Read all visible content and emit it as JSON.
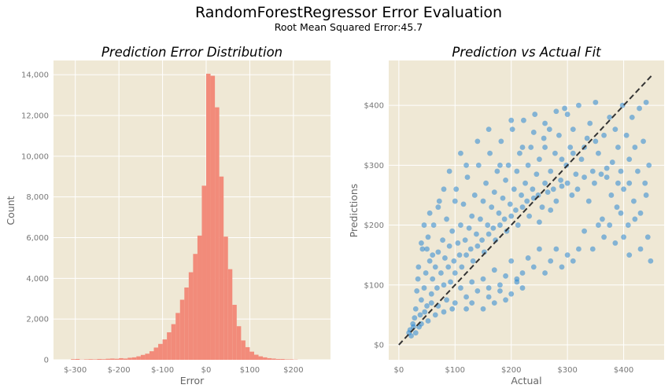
{
  "figure": {
    "title": "RandomForestRegressor Error Evaluation",
    "subtitle": "Root Mean Squared Error:45.7",
    "colors": {
      "background": "#EFE8D5",
      "grid": "#FFFFFF",
      "hist": "#F28B7A",
      "scatter": "#2A86D3",
      "ideal_line": "#333333"
    }
  },
  "chart_data": [
    {
      "type": "bar",
      "title": "Prediction Error Distribution",
      "xlabel": "Error",
      "ylabel": "Count",
      "xlim": [
        -350,
        285
      ],
      "ylim": [
        0,
        14700
      ],
      "xticks": [
        -300,
        -200,
        -100,
        0,
        100,
        200
      ],
      "xtick_labels": [
        "$-300",
        "$-200",
        "$-100",
        "$0",
        "$100",
        "$200"
      ],
      "yticks": [
        0,
        2000,
        4000,
        6000,
        8000,
        10000,
        12000,
        14000
      ],
      "ytick_labels": [
        "0",
        "2,000",
        "4,000",
        "6,000",
        "8,000",
        "10,000",
        "12,000",
        "14,000"
      ],
      "bin_width": 10,
      "bins": [
        {
          "x0": -310,
          "count": 30
        },
        {
          "x0": -300,
          "count": 40
        },
        {
          "x0": -290,
          "count": 10
        },
        {
          "x0": -280,
          "count": 20
        },
        {
          "x0": -270,
          "count": 30
        },
        {
          "x0": -260,
          "count": 20
        },
        {
          "x0": -250,
          "count": 40
        },
        {
          "x0": -240,
          "count": 30
        },
        {
          "x0": -230,
          "count": 50
        },
        {
          "x0": -220,
          "count": 60
        },
        {
          "x0": -210,
          "count": 50
        },
        {
          "x0": -200,
          "count": 80
        },
        {
          "x0": -190,
          "count": 60
        },
        {
          "x0": -180,
          "count": 100
        },
        {
          "x0": -170,
          "count": 120
        },
        {
          "x0": -160,
          "count": 170
        },
        {
          "x0": -150,
          "count": 240
        },
        {
          "x0": -140,
          "count": 300
        },
        {
          "x0": -130,
          "count": 420
        },
        {
          "x0": -120,
          "count": 600
        },
        {
          "x0": -110,
          "count": 780
        },
        {
          "x0": -100,
          "count": 1000
        },
        {
          "x0": -90,
          "count": 1350
        },
        {
          "x0": -80,
          "count": 1750
        },
        {
          "x0": -70,
          "count": 2300
        },
        {
          "x0": -60,
          "count": 2950
        },
        {
          "x0": -50,
          "count": 3550
        },
        {
          "x0": -40,
          "count": 4300
        },
        {
          "x0": -30,
          "count": 5200
        },
        {
          "x0": -20,
          "count": 6100
        },
        {
          "x0": -10,
          "count": 8550
        },
        {
          "x0": 0,
          "count": 14050
        },
        {
          "x0": 10,
          "count": 13950
        },
        {
          "x0": 20,
          "count": 12400
        },
        {
          "x0": 30,
          "count": 9000
        },
        {
          "x0": 40,
          "count": 6050
        },
        {
          "x0": 50,
          "count": 4450
        },
        {
          "x0": 60,
          "count": 2700
        },
        {
          "x0": 70,
          "count": 1650
        },
        {
          "x0": 80,
          "count": 950
        },
        {
          "x0": 90,
          "count": 620
        },
        {
          "x0": 100,
          "count": 400
        },
        {
          "x0": 110,
          "count": 250
        },
        {
          "x0": 120,
          "count": 170
        },
        {
          "x0": 130,
          "count": 120
        },
        {
          "x0": 140,
          "count": 80
        },
        {
          "x0": 150,
          "count": 60
        },
        {
          "x0": 160,
          "count": 40
        },
        {
          "x0": 170,
          "count": 40
        },
        {
          "x0": 180,
          "count": 20
        },
        {
          "x0": 190,
          "count": 20
        },
        {
          "x0": 200,
          "count": 10
        }
      ]
    },
    {
      "type": "scatter",
      "title": "Prediction vs Actual Fit",
      "xlabel": "Actual",
      "ylabel": "Predictions",
      "xlim": [
        -18,
        472
      ],
      "ylim": [
        -25,
        475
      ],
      "xticks": [
        0,
        100,
        200,
        300,
        400
      ],
      "xtick_labels": [
        "$0",
        "$100",
        "$200",
        "$300",
        "$400"
      ],
      "yticks": [
        0,
        100,
        200,
        300,
        400
      ],
      "ytick_labels": [
        "$0",
        "$100",
        "$200",
        "$300",
        "$400"
      ],
      "ideal_line": {
        "x": [
          0,
          450
        ],
        "y": [
          0,
          450
        ]
      },
      "points": [
        [
          20,
          25
        ],
        [
          25,
          35
        ],
        [
          28,
          45
        ],
        [
          30,
          60
        ],
        [
          32,
          90
        ],
        [
          34,
          110
        ],
        [
          35,
          130
        ],
        [
          38,
          50
        ],
        [
          40,
          75
        ],
        [
          42,
          160
        ],
        [
          45,
          95
        ],
        [
          48,
          120
        ],
        [
          50,
          65
        ],
        [
          52,
          180
        ],
        [
          55,
          140
        ],
        [
          58,
          85
        ],
        [
          60,
          110
        ],
        [
          62,
          200
        ],
        [
          65,
          130
        ],
        [
          68,
          95
        ],
        [
          70,
          155
        ],
        [
          72,
          240
        ],
        [
          75,
          120
        ],
        [
          78,
          175
        ],
        [
          80,
          100
        ],
        [
          82,
          145
        ],
        [
          85,
          210
        ],
        [
          88,
          130
        ],
        [
          90,
          165
        ],
        [
          92,
          105
        ],
        [
          95,
          190
        ],
        [
          98,
          140
        ],
        [
          100,
          120
        ],
        [
          102,
          260
        ],
        [
          105,
          170
        ],
        [
          108,
          150
        ],
        [
          110,
          200
        ],
        [
          112,
          130
        ],
        [
          115,
          235
        ],
        [
          118,
          175
        ],
        [
          120,
          150
        ],
        [
          122,
          280
        ],
        [
          125,
          195
        ],
        [
          128,
          160
        ],
        [
          130,
          215
        ],
        [
          132,
          140
        ],
        [
          135,
          250
        ],
        [
          138,
          185
        ],
        [
          140,
          165
        ],
        [
          142,
          300
        ],
        [
          145,
          210
        ],
        [
          148,
          175
        ],
        [
          150,
          240
        ],
        [
          152,
          155
        ],
        [
          155,
          270
        ],
        [
          158,
          200
        ],
        [
          160,
          185
        ],
        [
          162,
          320
        ],
        [
          165,
          230
        ],
        [
          168,
          195
        ],
        [
          170,
          255
        ],
        [
          172,
          175
        ],
        [
          175,
          290
        ],
        [
          178,
          220
        ],
        [
          180,
          200
        ],
        [
          182,
          340
        ],
        [
          185,
          245
        ],
        [
          188,
          210
        ],
        [
          190,
          275
        ],
        [
          192,
          190
        ],
        [
          195,
          300
        ],
        [
          198,
          235
        ],
        [
          200,
          215
        ],
        [
          202,
          360
        ],
        [
          205,
          260
        ],
        [
          208,
          225
        ],
        [
          210,
          290
        ],
        [
          212,
          200
        ],
        [
          215,
          320
        ],
        [
          218,
          250
        ],
        [
          220,
          230
        ],
        [
          222,
          375
        ],
        [
          225,
          270
        ],
        [
          228,
          240
        ],
        [
          230,
          300
        ],
        [
          232,
          215
        ],
        [
          235,
          330
        ],
        [
          238,
          260
        ],
        [
          240,
          245
        ],
        [
          242,
          385
        ],
        [
          245,
          285
        ],
        [
          248,
          250
        ],
        [
          250,
          310
        ],
        [
          255,
          230
        ],
        [
          258,
          345
        ],
        [
          260,
          270
        ],
        [
          265,
          255
        ],
        [
          268,
          360
        ],
        [
          270,
          290
        ],
        [
          275,
          260
        ],
        [
          278,
          320
        ],
        [
          280,
          240
        ],
        [
          285,
          350
        ],
        [
          288,
          275
        ],
        [
          290,
          265
        ],
        [
          295,
          395
        ],
        [
          298,
          300
        ],
        [
          300,
          270
        ],
        [
          305,
          330
        ],
        [
          308,
          250
        ],
        [
          310,
          360
        ],
        [
          315,
          285
        ],
        [
          318,
          260
        ],
        [
          320,
          400
        ],
        [
          325,
          310
        ],
        [
          330,
          280
        ],
        [
          335,
          345
        ],
        [
          338,
          240
        ],
        [
          340,
          370
        ],
        [
          345,
          290
        ],
        [
          348,
          270
        ],
        [
          350,
          405
        ],
        [
          355,
          320
        ],
        [
          360,
          285
        ],
        [
          362,
          210
        ],
        [
          365,
          350
        ],
        [
          370,
          295
        ],
        [
          375,
          380
        ],
        [
          378,
          250
        ],
        [
          380,
          305
        ],
        [
          385,
          360
        ],
        [
          388,
          230
        ],
        [
          390,
          330
        ],
        [
          395,
          290
        ],
        [
          398,
          400
        ],
        [
          400,
          260
        ],
        [
          405,
          350
        ],
        [
          408,
          200
        ],
        [
          410,
          310
        ],
        [
          415,
          380
        ],
        [
          418,
          240
        ],
        [
          420,
          330
        ],
        [
          425,
          290
        ],
        [
          428,
          395
        ],
        [
          430,
          220
        ],
        [
          435,
          340
        ],
        [
          438,
          270
        ],
        [
          440,
          405
        ],
        [
          443,
          180
        ],
        [
          445,
          300
        ],
        [
          448,
          140
        ],
        [
          440,
          250
        ],
        [
          430,
          160
        ],
        [
          420,
          210
        ],
        [
          410,
          150
        ],
        [
          400,
          180
        ],
        [
          395,
          220
        ],
        [
          385,
          170
        ],
        [
          375,
          200
        ],
        [
          365,
          180
        ],
        [
          355,
          200
        ],
        [
          345,
          160
        ],
        [
          330,
          190
        ],
        [
          320,
          160
        ],
        [
          310,
          140
        ],
        [
          300,
          150
        ],
        [
          290,
          130
        ],
        [
          280,
          160
        ],
        [
          270,
          140
        ],
        [
          260,
          120
        ],
        [
          250,
          160
        ],
        [
          240,
          130
        ],
        [
          230,
          145
        ],
        [
          220,
          120
        ],
        [
          210,
          105
        ],
        [
          200,
          140
        ],
        [
          190,
          115
        ],
        [
          180,
          100
        ],
        [
          170,
          125
        ],
        [
          160,
          95
        ],
        [
          150,
          110
        ],
        [
          140,
          90
        ],
        [
          130,
          105
        ],
        [
          120,
          80
        ],
        [
          110,
          95
        ],
        [
          100,
          70
        ],
        [
          95,
          60
        ],
        [
          85,
          75
        ],
        [
          80,
          55
        ],
        [
          70,
          65
        ],
        [
          65,
          50
        ],
        [
          58,
          70
        ],
        [
          52,
          40
        ],
        [
          46,
          55
        ],
        [
          40,
          35
        ],
        [
          36,
          30
        ],
        [
          30,
          20
        ],
        [
          26,
          30
        ],
        [
          22,
          15
        ],
        [
          18,
          20
        ],
        [
          150,
          60
        ],
        [
          160,
          80
        ],
        [
          170,
          70
        ],
        [
          180,
          90
        ],
        [
          190,
          75
        ],
        [
          200,
          85
        ],
        [
          210,
          110
        ],
        [
          220,
          95
        ],
        [
          120,
          60
        ],
        [
          130,
          70
        ],
        [
          60,
          150
        ],
        [
          50,
          160
        ],
        [
          45,
          200
        ],
        [
          40,
          170
        ],
        [
          55,
          220
        ],
        [
          70,
          230
        ],
        [
          80,
          260
        ],
        [
          90,
          290
        ],
        [
          100,
          240
        ],
        [
          110,
          320
        ],
        [
          120,
          300
        ],
        [
          140,
          340
        ],
        [
          160,
          360
        ],
        [
          180,
          300
        ],
        [
          200,
          375
        ],
        [
          220,
          330
        ],
        [
          240,
          355
        ],
        [
          260,
          370
        ],
        [
          280,
          390
        ],
        [
          300,
          385
        ],
        [
          260,
          330
        ],
        [
          250,
          205
        ],
        [
          270,
          225
        ],
        [
          290,
          310
        ],
        [
          310,
          320
        ],
        [
          330,
          330
        ],
        [
          350,
          340
        ],
        [
          370,
          280
        ],
        [
          390,
          270
        ],
        [
          410,
          270
        ]
      ]
    }
  ]
}
